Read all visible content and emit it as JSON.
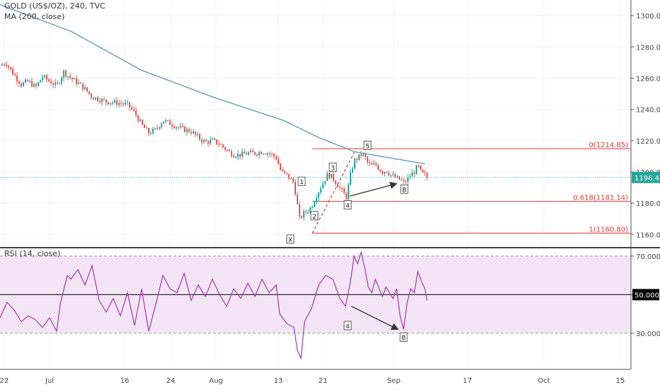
{
  "header": {
    "symbol_line": "GOLD (US$/OZ), 240, TVC",
    "indicator_line": "MA (200, close)"
  },
  "rsi_header": "RSI (14, close)",
  "colors": {
    "up": "#26a69a",
    "down": "#ef5350",
    "ma": "#5b9aa8",
    "fib": "#e53935",
    "rsi_line": "#9c27b0",
    "rsi_band": "#f3e5f5",
    "grid": "#f0f3fa",
    "axis_text": "#444444",
    "price_badge": "#26a69a"
  },
  "chart_data": [
    {
      "type": "candlestick",
      "title": "GOLD (US$/OZ), 240, TVC",
      "series_name": "MA (200, close)",
      "ylim": [
        1152,
        1310
      ],
      "y_ticks": [
        1160,
        1180,
        1200,
        1220,
        1240,
        1260,
        1280,
        1300
      ],
      "y_tick_labels": [
        "1160.00",
        "1180.00",
        "1200.00",
        "1220.00",
        "1240.00",
        "1260.00",
        "1280.00",
        "1300.00"
      ],
      "x_ticks": [
        "22",
        "Jul",
        "16",
        "24",
        "Aug",
        "13",
        "21",
        "Sep",
        "17",
        "Oct",
        "15"
      ],
      "last_price": 1196.47,
      "last_price_label": "1196.47",
      "price_anchors": [
        [
          0,
          1268
        ],
        [
          8,
          1270
        ],
        [
          20,
          1262
        ],
        [
          30,
          1256
        ],
        [
          40,
          1258
        ],
        [
          50,
          1254
        ],
        [
          60,
          1261
        ],
        [
          70,
          1258
        ],
        [
          80,
          1255
        ],
        [
          90,
          1264
        ],
        [
          100,
          1260
        ],
        [
          110,
          1257
        ],
        [
          120,
          1253
        ],
        [
          130,
          1248
        ],
        [
          150,
          1245
        ],
        [
          170,
          1244
        ],
        [
          180,
          1243
        ],
        [
          190,
          1238
        ],
        [
          200,
          1230
        ],
        [
          210,
          1225
        ],
        [
          220,
          1227
        ],
        [
          230,
          1233
        ],
        [
          240,
          1231
        ],
        [
          250,
          1229
        ],
        [
          260,
          1227
        ],
        [
          270,
          1226
        ],
        [
          280,
          1222
        ],
        [
          290,
          1219
        ],
        [
          300,
          1220
        ],
        [
          310,
          1218
        ],
        [
          320,
          1214
        ],
        [
          330,
          1211
        ],
        [
          340,
          1211
        ],
        [
          350,
          1212
        ],
        [
          360,
          1212
        ],
        [
          370,
          1213
        ],
        [
          380,
          1212
        ],
        [
          390,
          1209
        ],
        [
          397,
          1200
        ],
        [
          405,
          1198
        ],
        [
          415,
          1193
        ],
        [
          423,
          1170
        ],
        [
          430,
          1174
        ],
        [
          437,
          1176
        ],
        [
          442,
          1180
        ],
        [
          448,
          1186
        ],
        [
          455,
          1192
        ],
        [
          462,
          1198
        ],
        [
          468,
          1197
        ],
        [
          475,
          1193
        ],
        [
          482,
          1188
        ],
        [
          489,
          1184
        ],
        [
          495,
          1198
        ],
        [
          500,
          1207
        ],
        [
          505,
          1209
        ],
        [
          510,
          1211
        ],
        [
          515,
          1210
        ],
        [
          520,
          1205
        ],
        [
          525,
          1204
        ],
        [
          530,
          1205
        ],
        [
          535,
          1202
        ],
        [
          540,
          1200
        ],
        [
          545,
          1201
        ],
        [
          552,
          1198
        ],
        [
          560,
          1196
        ],
        [
          565,
          1195
        ],
        [
          570,
          1193
        ],
        [
          575,
          1195
        ],
        [
          580,
          1198
        ],
        [
          585,
          1200
        ],
        [
          590,
          1204
        ],
        [
          595,
          1199
        ],
        [
          600,
          1198
        ],
        [
          603,
          1196.47
        ]
      ],
      "ma_points": [
        [
          0,
          1307
        ],
        [
          100,
          1290
        ],
        [
          200,
          1265
        ],
        [
          300,
          1248
        ],
        [
          400,
          1233
        ],
        [
          450,
          1222
        ],
        [
          500,
          1213
        ],
        [
          550,
          1209
        ],
        [
          603,
          1205
        ]
      ],
      "fibonacci": [
        {
          "label": "0(1214.85)",
          "value": 1214.85
        },
        {
          "label": "0.618(1181.14)",
          "value": 1181.14
        },
        {
          "label": "1(1160.80)",
          "value": 1160.8
        }
      ],
      "wave_labels": [
        {
          "text": "X",
          "x": 410,
          "y": 1157
        },
        {
          "text": "1",
          "x": 426,
          "y": 1194
        },
        {
          "text": "2",
          "x": 444,
          "y": 1172
        },
        {
          "text": "3",
          "x": 470,
          "y": 1203
        },
        {
          "text": "4",
          "x": 491,
          "y": 1179
        },
        {
          "text": "5",
          "x": 519,
          "y": 1217
        },
        {
          "text": "B",
          "x": 571,
          "y": 1189
        }
      ]
    },
    {
      "type": "line",
      "title": "RSI (14, close)",
      "ylim": [
        12,
        74
      ],
      "y_ticks": [
        30,
        50,
        70
      ],
      "y_tick_labels": [
        "30.0000",
        "50.0000",
        "70.0000"
      ],
      "band": [
        30,
        70
      ],
      "midline": 50,
      "rsi_points": [
        [
          0,
          38
        ],
        [
          10,
          46
        ],
        [
          20,
          42
        ],
        [
          30,
          36
        ],
        [
          40,
          39
        ],
        [
          50,
          37
        ],
        [
          60,
          33
        ],
        [
          70,
          38
        ],
        [
          80,
          31
        ],
        [
          85,
          45
        ],
        [
          95,
          60
        ],
        [
          100,
          58
        ],
        [
          110,
          63
        ],
        [
          120,
          55
        ],
        [
          130,
          65
        ],
        [
          140,
          47
        ],
        [
          150,
          41
        ],
        [
          160,
          48
        ],
        [
          170,
          39
        ],
        [
          180,
          51
        ],
        [
          190,
          34
        ],
        [
          200,
          53
        ],
        [
          210,
          31
        ],
        [
          220,
          45
        ],
        [
          230,
          60
        ],
        [
          240,
          53
        ],
        [
          250,
          51
        ],
        [
          260,
          61
        ],
        [
          270,
          47
        ],
        [
          280,
          55
        ],
        [
          290,
          49
        ],
        [
          300,
          58
        ],
        [
          310,
          50
        ],
        [
          320,
          44
        ],
        [
          330,
          53
        ],
        [
          340,
          48
        ],
        [
          350,
          56
        ],
        [
          360,
          49
        ],
        [
          370,
          58
        ],
        [
          380,
          51
        ],
        [
          390,
          55
        ],
        [
          395,
          40
        ],
        [
          405,
          35
        ],
        [
          415,
          33
        ],
        [
          420,
          21
        ],
        [
          425,
          17
        ],
        [
          430,
          36
        ],
        [
          440,
          43
        ],
        [
          450,
          55
        ],
        [
          460,
          60
        ],
        [
          470,
          58
        ],
        [
          480,
          48
        ],
        [
          488,
          44
        ],
        [
          495,
          57
        ],
        [
          500,
          70
        ],
        [
          505,
          66
        ],
        [
          510,
          72
        ],
        [
          515,
          64
        ],
        [
          520,
          54
        ],
        [
          525,
          51
        ],
        [
          530,
          58
        ],
        [
          540,
          49
        ],
        [
          545,
          54
        ],
        [
          550,
          51
        ],
        [
          555,
          48
        ],
        [
          560,
          53
        ],
        [
          565,
          39
        ],
        [
          570,
          32
        ],
        [
          575,
          46
        ],
        [
          580,
          53
        ],
        [
          585,
          51
        ],
        [
          590,
          62
        ],
        [
          595,
          57
        ],
        [
          600,
          53
        ],
        [
          603,
          47
        ]
      ],
      "wave_labels": [
        {
          "text": "4",
          "x": 491,
          "y": 34
        },
        {
          "text": "B",
          "x": 570,
          "y": 28
        }
      ]
    }
  ]
}
